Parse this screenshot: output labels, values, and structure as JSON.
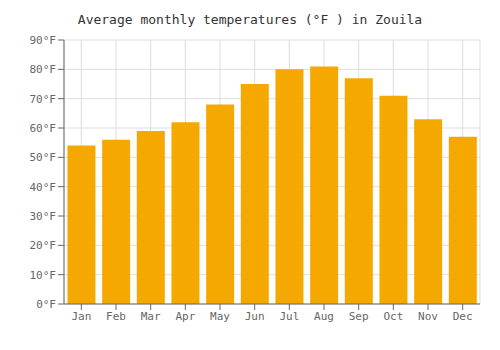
{
  "chart_data": {
    "type": "bar",
    "title": "Average monthly temperatures (°F ) in Zouila",
    "categories": [
      "Jan",
      "Feb",
      "Mar",
      "Apr",
      "May",
      "Jun",
      "Jul",
      "Aug",
      "Sep",
      "Oct",
      "Nov",
      "Dec"
    ],
    "values": [
      54,
      56,
      59,
      62,
      68,
      75,
      80,
      81,
      77,
      71,
      63,
      57
    ],
    "color": "#F5A800",
    "ylim": [
      0,
      90
    ],
    "yticks": [
      {
        "value": 0,
        "label": "0°F"
      },
      {
        "value": 10,
        "label": "10°F"
      },
      {
        "value": 20,
        "label": "20°F"
      },
      {
        "value": 30,
        "label": "30°F"
      },
      {
        "value": 40,
        "label": "40°F"
      },
      {
        "value": 50,
        "label": "50°F"
      },
      {
        "value": 60,
        "label": "60°F"
      },
      {
        "value": 70,
        "label": "70°F"
      },
      {
        "value": 80,
        "label": "80°F"
      },
      {
        "value": 90,
        "label": "90°F"
      }
    ],
    "grid": true
  }
}
